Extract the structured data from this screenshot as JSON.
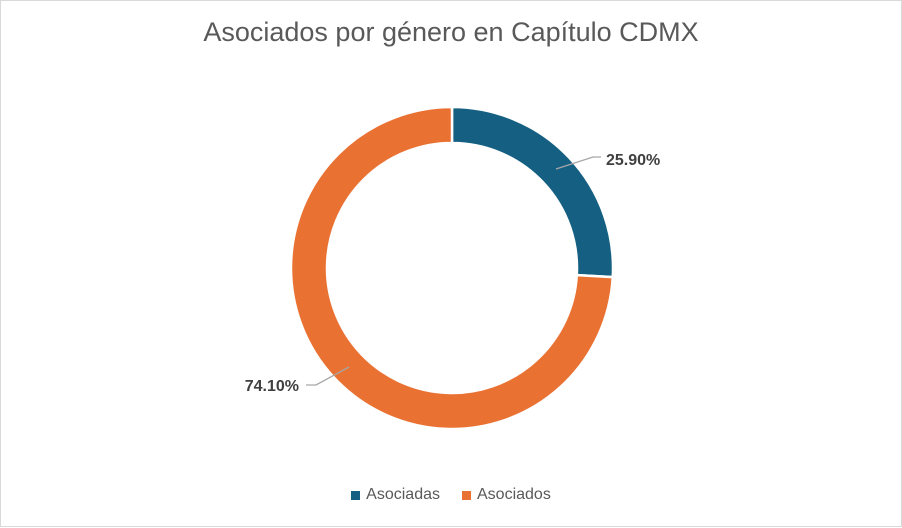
{
  "chart_data": {
    "type": "pie",
    "variant": "donut",
    "title": "Asociados por género en Capítulo CDMX",
    "categories": [
      "Asociadas",
      "Asociados"
    ],
    "values": [
      25.9,
      74.1
    ],
    "labels": [
      "25.90%",
      "74.10%"
    ],
    "colors": [
      "#156082",
      "#E97132"
    ],
    "legend_position": "bottom"
  }
}
